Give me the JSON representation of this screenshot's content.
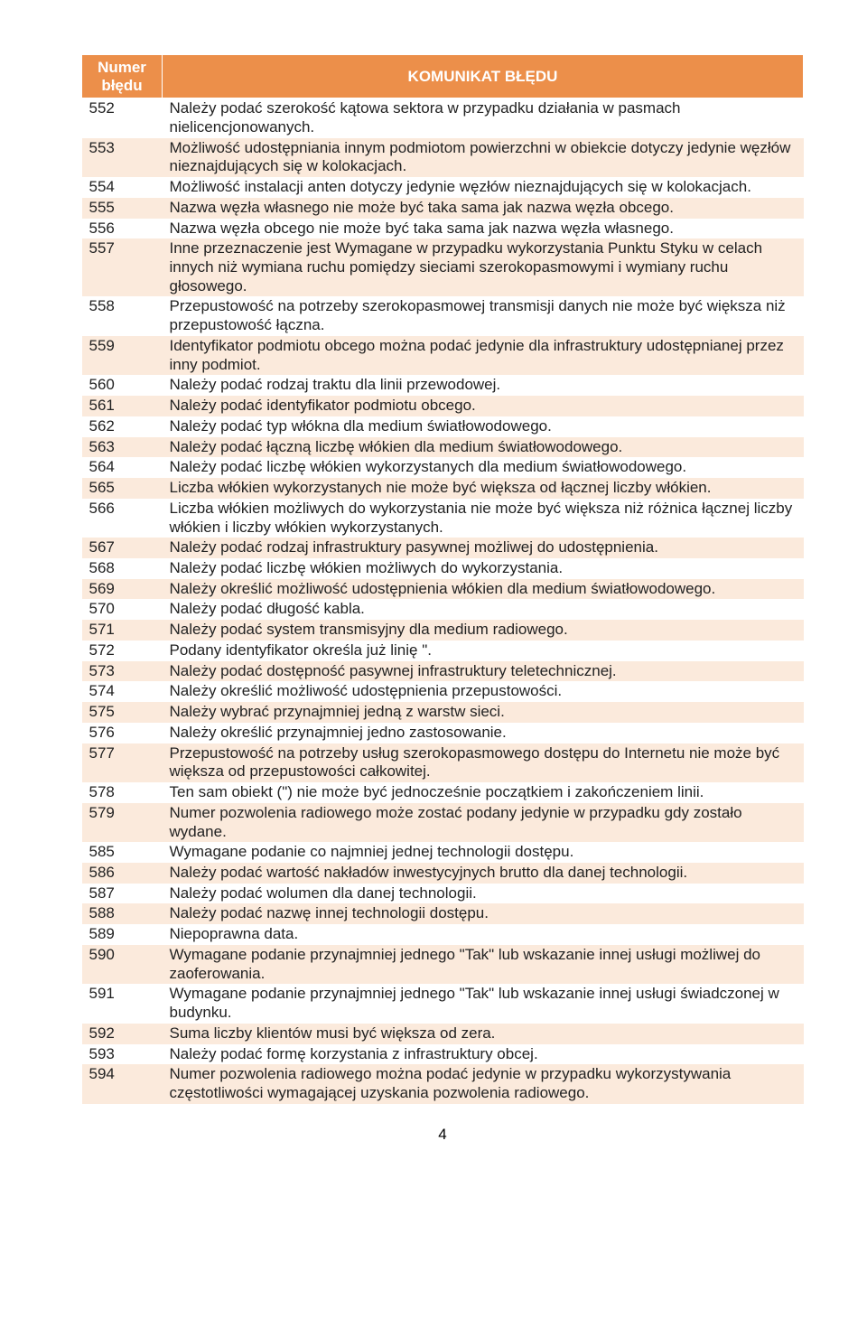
{
  "header": {
    "col1_line1": "Numer",
    "col1_line2": "błędu",
    "col2": "KOMUNIKAT BŁĘDU"
  },
  "rows": [
    {
      "num": "552",
      "msg": "Należy podać szerokość kątowa sektora w przypadku działania w pasmach nielicencjonowanych."
    },
    {
      "num": "553",
      "msg": "Możliwość udostępniania innym podmiotom powierzchni w obiekcie dotyczy jedynie węzłów nieznajdujących się w kolokacjach."
    },
    {
      "num": "554",
      "msg": "Możliwość instalacji anten dotyczy jedynie węzłów nieznajdujących się w kolokacjach."
    },
    {
      "num": "555",
      "msg": "Nazwa węzła własnego nie może być taka sama jak nazwa węzła obcego."
    },
    {
      "num": "556",
      "msg": "Nazwa węzła obcego nie może być taka sama jak nazwa węzła własnego."
    },
    {
      "num": "557",
      "msg": "Inne przeznaczenie jest Wymagane w przypadku wykorzystania Punktu Styku w celach innych niż wymiana ruchu pomiędzy sieciami szerokopasmowymi i wymiany ruchu głosowego."
    },
    {
      "num": "558",
      "msg": "Przepustowość na potrzeby szerokopasmowej transmisji danych nie może być większa niż przepustowość łączna."
    },
    {
      "num": "559",
      "msg": "Identyfikator podmiotu obcego można podać jedynie dla infrastruktury udostępnianej przez inny podmiot."
    },
    {
      "num": "560",
      "msg": "Należy podać rodzaj traktu dla linii przewodowej."
    },
    {
      "num": "561",
      "msg": "Należy podać identyfikator podmiotu obcego."
    },
    {
      "num": "562",
      "msg": "Należy podać typ włókna dla medium światłowodowego."
    },
    {
      "num": "563",
      "msg": "Należy podać łączną liczbę włókien dla medium światłowodowego."
    },
    {
      "num": "564",
      "msg": "Należy podać liczbę włókien wykorzystanych dla medium światłowodowego."
    },
    {
      "num": "565",
      "msg": "Liczba włókien wykorzystanych nie może być większa od łącznej liczby włókien."
    },
    {
      "num": "566",
      "msg": "Liczba włókien możliwych do wykorzystania nie może być większa niż różnica łącznej liczby włókien i liczby włókien wykorzystanych."
    },
    {
      "num": "567",
      "msg": "Należy podać rodzaj infrastruktury pasywnej możliwej do udostępnienia."
    },
    {
      "num": "568",
      "msg": "Należy podać liczbę włókien możliwych do wykorzystania."
    },
    {
      "num": "569",
      "msg": "Należy określić możliwość udostępnienia włókien dla medium światłowodowego."
    },
    {
      "num": "570",
      "msg": "Należy podać długość kabla."
    },
    {
      "num": "571",
      "msg": "Należy podać system transmisyjny dla medium radiowego."
    },
    {
      "num": "572",
      "msg": "Podany identyfikator określa już linię \"."
    },
    {
      "num": "573",
      "msg": "Należy podać dostępność pasywnej infrastruktury teletechnicznej."
    },
    {
      "num": "574",
      "msg": "Należy określić możliwość udostępnienia przepustowości."
    },
    {
      "num": "575",
      "msg": "Należy wybrać przynajmniej jedną z warstw sieci."
    },
    {
      "num": "576",
      "msg": "Należy określić przynajmniej jedno zastosowanie."
    },
    {
      "num": "577",
      "msg": "Przepustowość na potrzeby usług szerokopasmowego dostępu do Internetu nie może być większa od przepustowości całkowitej."
    },
    {
      "num": "578",
      "msg": "Ten sam obiekt (\") nie może być jednocześnie początkiem i zakończeniem linii."
    },
    {
      "num": "579",
      "msg": "Numer pozwolenia radiowego może zostać podany jedynie w przypadku gdy zostało wydane."
    },
    {
      "num": "585",
      "msg": "Wymagane podanie co najmniej jednej technologii dostępu."
    },
    {
      "num": "586",
      "msg": "Należy podać wartość nakładów inwestycyjnych brutto dla danej technologii."
    },
    {
      "num": "587",
      "msg": "Należy podać wolumen dla danej technologii."
    },
    {
      "num": "588",
      "msg": "Należy podać nazwę innej technologii dostępu."
    },
    {
      "num": "589",
      "msg": "Niepoprawna data."
    },
    {
      "num": "590",
      "msg": "Wymagane podanie przynajmniej jednego \"Tak\" lub wskazanie innej usługi możliwej do zaoferowania."
    },
    {
      "num": "591",
      "msg": "Wymagane podanie przynajmniej jednego \"Tak\" lub wskazanie innej usługi świadczonej w budynku."
    },
    {
      "num": "592",
      "msg": "Suma liczby klientów musi być większa od zera."
    },
    {
      "num": "593",
      "msg": "Należy podać formę korzystania z infrastruktury obcej."
    },
    {
      "num": "594",
      "msg": "Numer pozwolenia radiowego można podać jedynie w przypadku wykorzystywania częstotliwości wymagającej uzyskania pozwolenia radiowego."
    }
  ],
  "page_number": "4",
  "colors": {
    "header_bg": "#ec8f4a",
    "header_text": "#ffffff",
    "row_even_bg": "#fbeadc",
    "row_odd_bg": "#ffffff",
    "text": "#222222"
  }
}
